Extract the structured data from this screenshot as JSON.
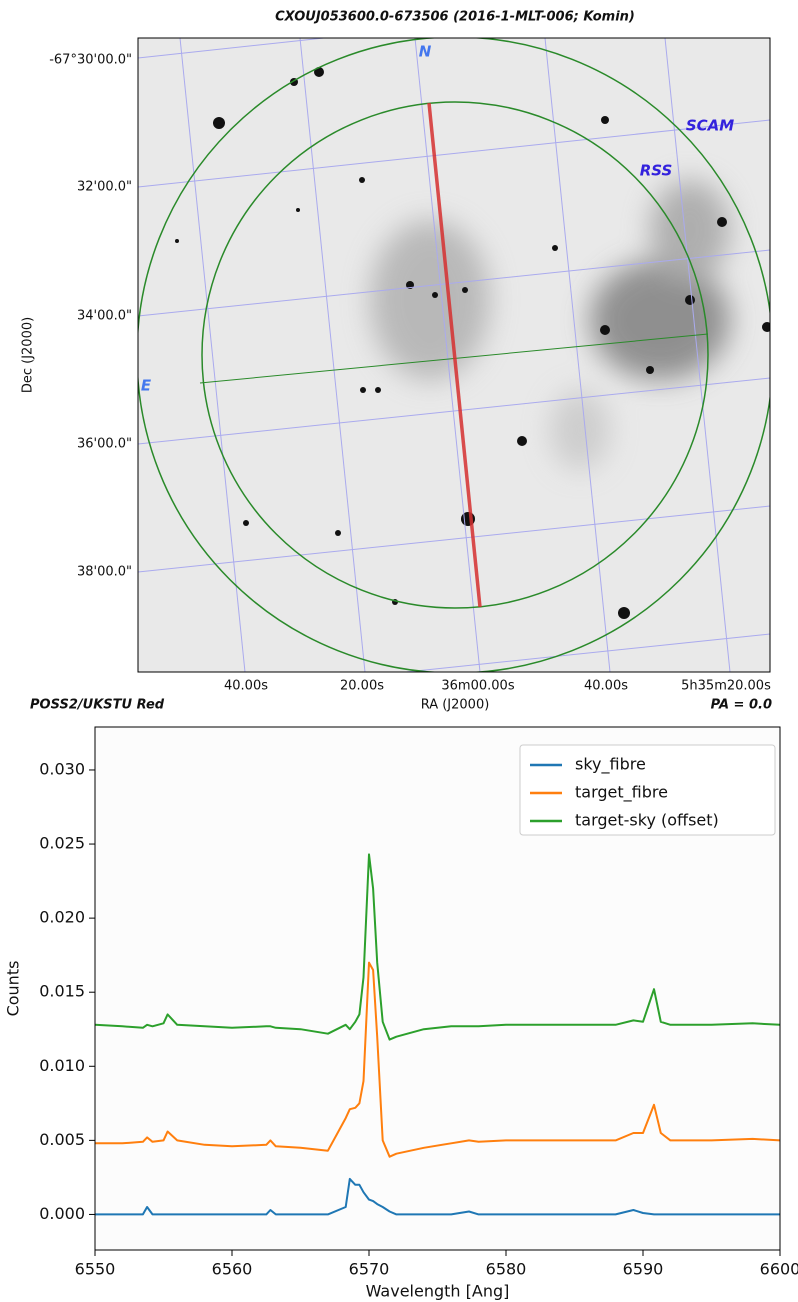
{
  "chart_data": [
    {
      "type": "image",
      "title": "CXOUJ053600.0-673506 (2016-1-MLT-006; Komin)",
      "ylabel": "Dec (J2000)",
      "xlabel": "RA (J2000)",
      "ytick_labels": [
        "-67°30'00.0\"",
        "32'00.0\"",
        "34'00.0\"",
        "36'00.0\"",
        "38'00.0\""
      ],
      "xtick_labels": [
        "40.00s",
        "20.00s",
        "36m00.00s",
        "40.00s",
        "5h35m20.00s"
      ],
      "annotations": [
        "N",
        "E",
        "SCAM",
        "RSS"
      ],
      "source": "POSS2/UKSTU Red",
      "pa": "PA = 0.0"
    },
    {
      "type": "line",
      "xlabel": "Wavelength [Ang]",
      "ylabel": "Counts",
      "x": [
        6550,
        6552,
        6553.5,
        6553.8,
        6554.2,
        6555,
        6555.3,
        6556,
        6558,
        6560,
        6562.5,
        6562.8,
        6563.2,
        6565,
        6567,
        6568.3,
        6568.6,
        6569,
        6569.3,
        6569.6,
        6570,
        6570.3,
        6570.6,
        6571,
        6571.5,
        6572,
        6574,
        6576,
        6577.3,
        6578,
        6580,
        6584,
        6588,
        6589.3,
        6590,
        6590.8,
        6591.3,
        6592,
        6595,
        6598,
        6600
      ],
      "series": [
        {
          "name": "sky_fibre",
          "color": "#1f77b4",
          "values": [
            0,
            0,
            0,
            0.0005,
            0,
            0,
            0,
            0,
            0,
            0,
            0,
            0.0003,
            0,
            0,
            0,
            0.0005,
            0.0024,
            0.002,
            0.002,
            0.0015,
            0.001,
            0.0009,
            0.0007,
            0.0005,
            0.0002,
            0,
            0,
            0,
            0.0002,
            0,
            0,
            0,
            0,
            0.0003,
            0.0001,
            0,
            0,
            0,
            0,
            0,
            0
          ]
        },
        {
          "name": "target_fibre",
          "color": "#ff7f0e",
          "values": [
            0.0048,
            0.0048,
            0.0049,
            0.0052,
            0.0049,
            0.005,
            0.0056,
            0.005,
            0.0047,
            0.0046,
            0.0047,
            0.005,
            0.0046,
            0.0045,
            0.0043,
            0.0065,
            0.0071,
            0.0072,
            0.0075,
            0.009,
            0.017,
            0.0165,
            0.012,
            0.005,
            0.0039,
            0.0041,
            0.0045,
            0.0048,
            0.005,
            0.0049,
            0.005,
            0.005,
            0.005,
            0.0055,
            0.0055,
            0.0074,
            0.0055,
            0.005,
            0.005,
            0.0051,
            0.005
          ]
        },
        {
          "name": "target-sky (offset)",
          "color": "#2ca02c",
          "values": [
            0.0128,
            0.0127,
            0.0126,
            0.0128,
            0.0127,
            0.0129,
            0.0135,
            0.0128,
            0.0127,
            0.0126,
            0.0127,
            0.0127,
            0.0126,
            0.0125,
            0.0122,
            0.0128,
            0.0125,
            0.013,
            0.0135,
            0.016,
            0.0243,
            0.022,
            0.017,
            0.013,
            0.0118,
            0.012,
            0.0125,
            0.0127,
            0.0127,
            0.0127,
            0.0128,
            0.0128,
            0.0128,
            0.0131,
            0.013,
            0.0152,
            0.013,
            0.0128,
            0.0128,
            0.0129,
            0.0128
          ]
        }
      ],
      "xlim": [
        6550,
        6600
      ],
      "ylim": [
        -0.0024,
        0.0329
      ],
      "xticks": [
        6550,
        6560,
        6570,
        6580,
        6590,
        6600
      ],
      "yticks": [
        {
          "value": 0,
          "label": "0.000"
        },
        {
          "value": 0.005,
          "label": "0.005"
        },
        {
          "value": 0.01,
          "label": "0.010"
        },
        {
          "value": 0.015,
          "label": "0.015"
        },
        {
          "value": 0.02,
          "label": "0.020"
        },
        {
          "value": 0.025,
          "label": "0.025"
        },
        {
          "value": 0.03,
          "label": "0.030"
        }
      ],
      "legend": "upper right"
    }
  ]
}
